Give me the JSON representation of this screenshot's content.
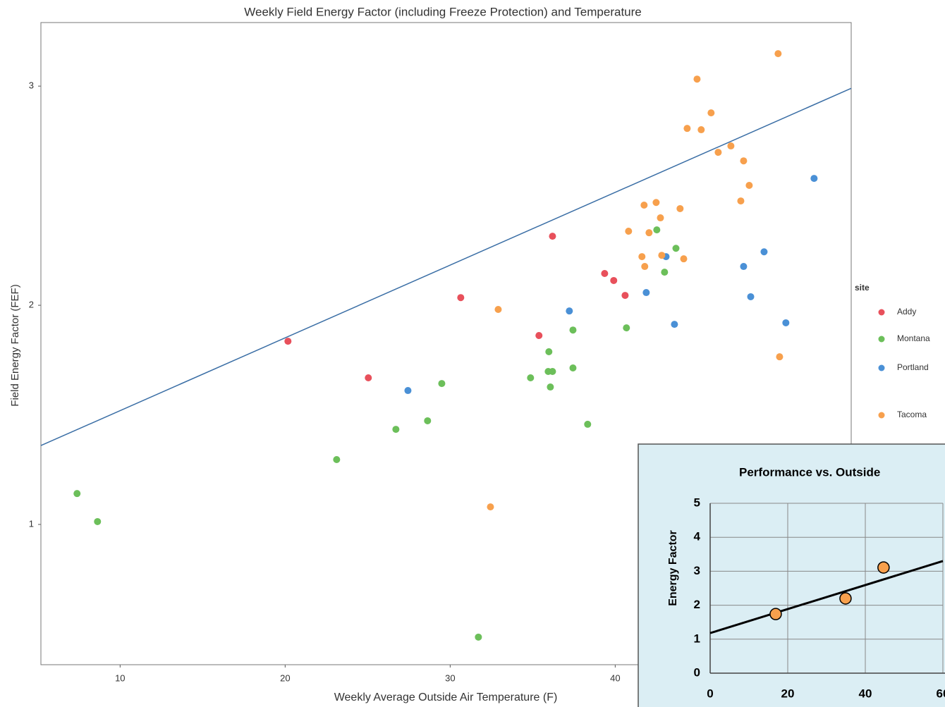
{
  "chart_data": [
    {
      "type": "scatter",
      "title": "Weekly Field Energy Factor (including Freeze Protection) and Temperature",
      "x_label": "Weekly Average Outside Air Temperature (F)",
      "y_label": "Field Energy Factor (FEF)",
      "legend_title": "site",
      "xlim": [
        5.2,
        54.3
      ],
      "ylim": [
        0.36,
        3.29
      ],
      "xticks": [
        10,
        20,
        30,
        40
      ],
      "yticks": [
        1,
        2,
        3
      ],
      "grid": false,
      "series": [
        {
          "name": "Addy",
          "color": "#e8505b",
          "x": [
            20.17,
            25.04,
            30.64,
            35.38,
            36.2,
            39.36,
            39.91,
            40.6
          ],
          "values": [
            1.836,
            1.669,
            2.035,
            1.862,
            2.315,
            2.145,
            2.113,
            2.045
          ]
        },
        {
          "name": "Montana",
          "color": "#6cbf5a",
          "x": [
            7.39,
            8.63,
            23.12,
            26.71,
            28.63,
            29.49,
            34.87,
            35.98,
            35.94,
            36.2,
            36.07,
            37.44,
            37.44,
            38.33,
            40.68,
            42.52,
            42.99,
            43.68,
            31.71
          ],
          "values": [
            1.141,
            1.013,
            1.296,
            1.434,
            1.473,
            1.643,
            1.669,
            1.788,
            1.698,
            1.698,
            1.627,
            1.887,
            1.714,
            1.457,
            1.897,
            2.344,
            2.151,
            2.26,
            0.486
          ]
        },
        {
          "name": "Portland",
          "color": "#4a90d6",
          "x": [
            27.44,
            37.22,
            41.88,
            43.08,
            43.59,
            47.78,
            48.21,
            49.02,
            50.34,
            52.05
          ],
          "values": [
            1.611,
            1.974,
            2.058,
            2.222,
            1.913,
            2.177,
            2.039,
            2.244,
            1.92,
            2.579
          ]
        },
        {
          "name": "Tacoma",
          "color": "#f7a04d",
          "x": [
            32.91,
            32.44,
            40.81,
            41.62,
            41.75,
            41.79,
            42.05,
            42.48,
            42.74,
            42.82,
            43.93,
            44.15,
            44.36,
            44.96,
            45.21,
            45.81,
            46.24,
            47.01,
            47.61,
            47.78,
            48.12,
            49.87,
            49.96
          ],
          "values": [
            1.981,
            1.08,
            2.338,
            2.222,
            2.457,
            2.177,
            2.331,
            2.469,
            2.399,
            2.228,
            2.441,
            2.212,
            2.807,
            3.032,
            2.801,
            2.878,
            2.698,
            2.727,
            2.476,
            2.659,
            2.547,
            3.148,
            1.765
          ]
        }
      ],
      "trend_line": {
        "x": [
          5.2,
          54.3
        ],
        "values": [
          1.36,
          2.99
        ],
        "color": "#3a6ea5"
      }
    },
    {
      "type": "scatter",
      "title": "Performance vs. Outside",
      "y_label": "Energy Factor",
      "xlim": [
        0,
        60
      ],
      "ylim": [
        0,
        5
      ],
      "xticks": [
        0,
        20,
        40,
        60
      ],
      "yticks": [
        0,
        1,
        2,
        3,
        4,
        5
      ],
      "grid": true,
      "background": "#dbeef4",
      "series": [
        {
          "color": "#f7a04d",
          "x": [
            16.9,
            34.9,
            44.7
          ],
          "values": [
            1.74,
            2.2,
            3.11
          ]
        }
      ],
      "trend_line": {
        "x": [
          0,
          60
        ],
        "values": [
          1.18,
          3.3
        ],
        "color": "#000000"
      }
    }
  ]
}
